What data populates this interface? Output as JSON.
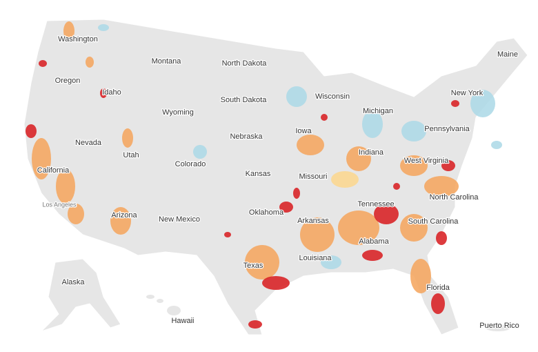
{
  "labels": [
    "Washington",
    "Montana",
    "North Dakota",
    "Maine",
    "Oregon",
    "Idaho",
    "South Dakota",
    "Wisconsin",
    "New York",
    "Michigan",
    "Wyoming",
    "Iowa",
    "Pennsylvania",
    "Nebraska",
    "Nevada",
    "Utah",
    "Indiana",
    "West Virginia",
    "Colorado",
    "California",
    "Kansas",
    "Missouri",
    "Los Angeles",
    "Tennessee",
    "North Carolina",
    "Oklahoma",
    "New Mexico",
    "Arizona",
    "Arkansas",
    "South Carolina",
    "Alabama",
    "Louisiana",
    "Texas",
    "Florida",
    "Alaska",
    "Hawaii",
    "Puerto Rico"
  ]
}
